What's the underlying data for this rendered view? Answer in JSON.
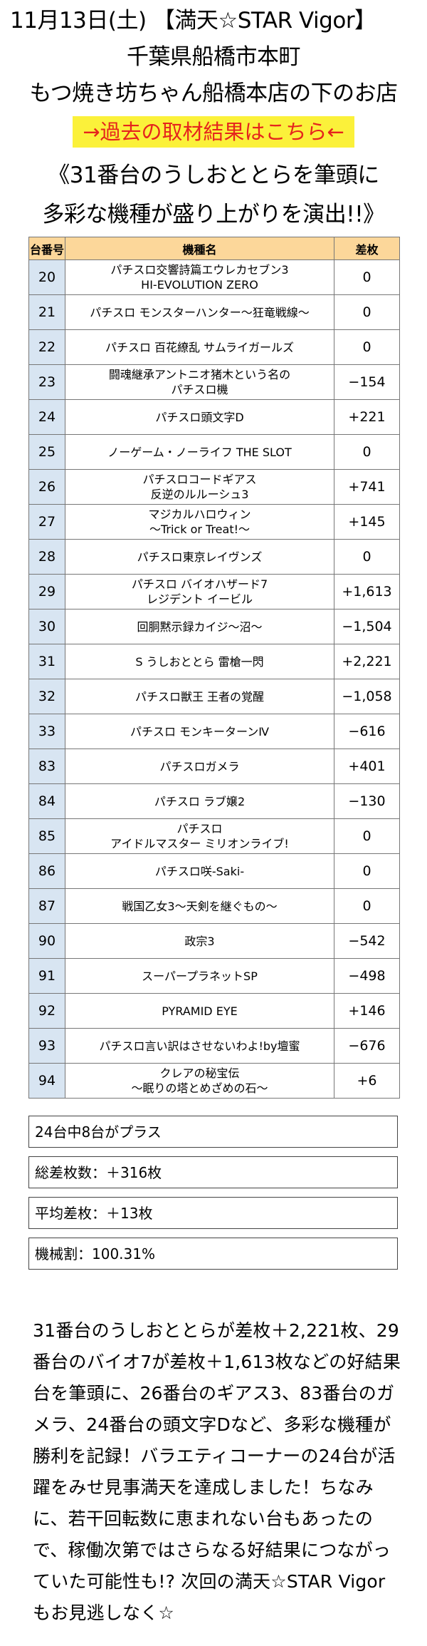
{
  "header": {
    "line1": "11月13日(土) 【満天☆STAR Vigor】",
    "line2": "千葉県船橋市本町",
    "line3": "もつ焼き坊ちゃん船橋本店の下のお店",
    "link": "→過去の取材結果はこちら←"
  },
  "catchcopy": {
    "line1": "《31番台のうしおととらを筆頭に",
    "line2": "多彩な機種が盛り上がりを演出!!》"
  },
  "table": {
    "headers": [
      "台番号",
      "機種名",
      "差枚"
    ],
    "rows": [
      {
        "num": "20",
        "name": "パチスロ交響詩篇エウレカセブン3\nHI-EVOLUTION ZERO",
        "diff": "0"
      },
      {
        "num": "21",
        "name": "パチスロ モンスターハンター～狂竜戦線～",
        "diff": "0"
      },
      {
        "num": "22",
        "name": "パチスロ 百花繚乱 サムライガールズ",
        "diff": "0"
      },
      {
        "num": "23",
        "name": "闘魂継承アントニオ猪木という名の\nパチスロ機",
        "diff": "−154"
      },
      {
        "num": "24",
        "name": "パチスロ頭文字D",
        "diff": "+221"
      },
      {
        "num": "25",
        "name": "ノーゲーム・ノーライフ THE SLOT",
        "diff": "0"
      },
      {
        "num": "26",
        "name": "パチスロコードギアス\n反逆のルルーシュ3",
        "diff": "+741"
      },
      {
        "num": "27",
        "name": "マジカルハロウィン\n～Trick or Treat!～",
        "diff": "+145"
      },
      {
        "num": "28",
        "name": "パチスロ東京レイヴンズ",
        "diff": "0"
      },
      {
        "num": "29",
        "name": "パチスロ バイオハザード7\nレジデント イービル",
        "diff": "+1,613"
      },
      {
        "num": "30",
        "name": "回胴黙示録カイジ～沼～",
        "diff": "−1,504"
      },
      {
        "num": "31",
        "name": "S うしおととら 雷槍一閃",
        "diff": "+2,221"
      },
      {
        "num": "32",
        "name": "パチスロ獣王 王者の覚醒",
        "diff": "−1,058"
      },
      {
        "num": "33",
        "name": "パチスロ モンキーターンⅣ",
        "diff": "−616"
      },
      {
        "num": "83",
        "name": "パチスロガメラ",
        "diff": "+401"
      },
      {
        "num": "84",
        "name": "パチスロ ラブ嬢2",
        "diff": "−130"
      },
      {
        "num": "85",
        "name": "パチスロ\nアイドルマスター ミリオンライブ!",
        "diff": "0"
      },
      {
        "num": "86",
        "name": "パチスロ咲-Saki-",
        "diff": "0"
      },
      {
        "num": "87",
        "name": "戦国乙女3～天剣を継ぐもの～",
        "diff": "0"
      },
      {
        "num": "90",
        "name": "政宗3",
        "diff": "−542"
      },
      {
        "num": "91",
        "name": "スーパープラネットSP",
        "diff": "−498"
      },
      {
        "num": "92",
        "name": "PYRAMID EYE",
        "diff": "+146"
      },
      {
        "num": "93",
        "name": "パチスロ言い訳はさせないわよ!by壇蜜",
        "diff": "−676"
      },
      {
        "num": "94",
        "name": "クレアの秘宝伝\n～眠りの塔とめざめの石～",
        "diff": "+6"
      }
    ]
  },
  "summary": {
    "plus_count": "24台中8台がプラス",
    "total": "総差枚数：＋316枚",
    "average": "平均差枚：＋13枚",
    "machine_rate": "機械割：100.31%"
  },
  "body_text": "31番台のうしおととらが差枚＋2,221枚、29番台のバイオ7が差枚＋1,613枚などの好結果台を筆頭に、26番台のギアス3、83番台のガメラ、24番台の頭文字Dなど、多彩な機種が勝利を記録！バラエティコーナーの24台が活躍をみせ見事満天を達成しました！ちなみに、若干回転数に恵まれない台もあったので、稼働次第ではさらなる好結果につながっていた可能性も!? 次回の満天☆STAR Vigorもお見逃しなく☆"
}
